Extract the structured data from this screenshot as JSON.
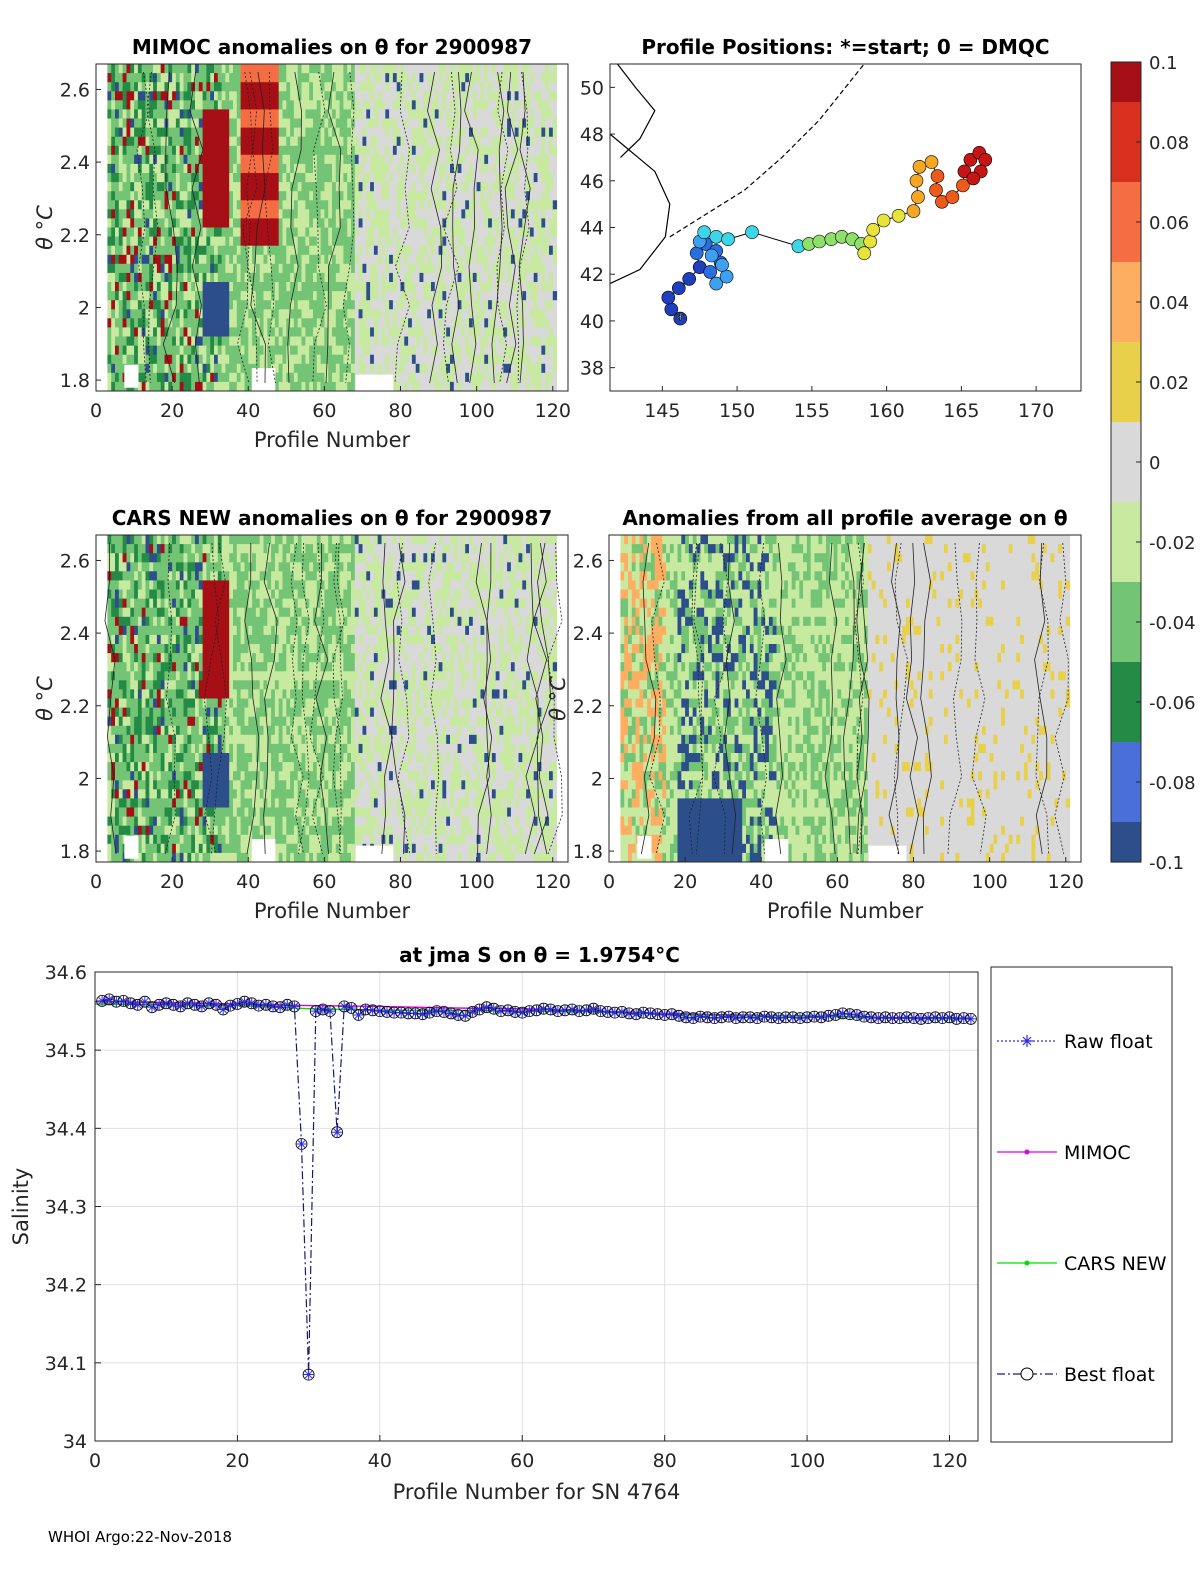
{
  "footer": "WHOI Argo:22-Nov-2018",
  "colorbar": {
    "ticks": [
      "0.1",
      "0.08",
      "0.06",
      "0.04",
      "0.02",
      "0",
      "-0.02",
      "-0.04",
      "-0.06",
      "-0.08",
      "-0.1"
    ],
    "stops": [
      "#a50f15",
      "#d7301f",
      "#f46d43",
      "#fdae61",
      "#e8d04a",
      "#d9d9d9",
      "#c7e9a0",
      "#74c476",
      "#238b45",
      "#4a6fd6",
      "#2c4f8c"
    ]
  },
  "section_plots": [
    {
      "id": "mimoc",
      "title": "MIMOC anomalies on θ  for 2900987",
      "xlabel": "Profile Number",
      "ylabel": "θ °C",
      "xticks": [
        "0",
        "20",
        "40",
        "60",
        "80",
        "100",
        "120"
      ],
      "yticks": [
        "2.6",
        "2.4",
        "2.2",
        "2",
        "1.8"
      ]
    },
    {
      "id": "cars",
      "title": "CARS NEW anomalies on θ for 2900987",
      "xlabel": "Profile Number",
      "ylabel": "θ °C",
      "xticks": [
        "0",
        "20",
        "40",
        "60",
        "80",
        "100",
        "120"
      ],
      "yticks": [
        "2.6",
        "2.4",
        "2.2",
        "2",
        "1.8"
      ]
    },
    {
      "id": "avg",
      "title": "Anomalies from all profile average on θ",
      "xlabel": "Profile Number",
      "ylabel": "θ °C",
      "xticks": [
        "0",
        "20",
        "40",
        "60",
        "80",
        "100",
        "120"
      ],
      "yticks": [
        "2.6",
        "2.4",
        "2.2",
        "2",
        "1.8"
      ]
    }
  ],
  "map": {
    "title": "Profile Positions: *=start; 0 = DMQC",
    "xticks": [
      "145",
      "150",
      "155",
      "160",
      "165",
      "170"
    ],
    "yticks": [
      "50",
      "48",
      "46",
      "44",
      "42",
      "40",
      "38"
    ]
  },
  "chart_data": [
    {
      "type": "scatter",
      "title": "Profile Positions: *=start; 0 = DMQC",
      "xlim": [
        141.5,
        173
      ],
      "ylim": [
        37,
        51
      ],
      "track": [
        [
          146.2,
          40.1
        ],
        [
          145.6,
          40.5
        ],
        [
          145.4,
          41.0
        ],
        [
          146.1,
          41.4
        ],
        [
          146.8,
          41.8
        ],
        [
          147.5,
          42.3
        ],
        [
          147.3,
          42.9
        ],
        [
          147.9,
          43.3
        ],
        [
          148.6,
          43.0
        ],
        [
          148.9,
          42.5
        ],
        [
          148.2,
          42.1
        ],
        [
          148.6,
          41.6
        ],
        [
          149.3,
          41.9
        ],
        [
          149.0,
          42.4
        ],
        [
          148.3,
          42.8
        ],
        [
          147.5,
          43.4
        ],
        [
          147.8,
          43.8
        ],
        [
          148.6,
          43.6
        ],
        [
          149.4,
          43.5
        ],
        [
          151.0,
          43.8
        ],
        [
          154.1,
          43.2
        ],
        [
          154.8,
          43.3
        ],
        [
          155.5,
          43.4
        ],
        [
          156.3,
          43.5
        ],
        [
          157.0,
          43.6
        ],
        [
          157.7,
          43.5
        ],
        [
          158.3,
          43.3
        ],
        [
          158.5,
          42.9
        ],
        [
          158.9,
          43.4
        ],
        [
          159.1,
          43.9
        ],
        [
          159.8,
          44.3
        ],
        [
          160.8,
          44.5
        ],
        [
          161.8,
          44.7
        ],
        [
          162.1,
          45.3
        ],
        [
          162.0,
          46.0
        ],
        [
          162.2,
          46.6
        ],
        [
          163.0,
          46.8
        ],
        [
          163.4,
          46.2
        ],
        [
          163.3,
          45.6
        ],
        [
          163.7,
          45.1
        ],
        [
          164.4,
          45.3
        ],
        [
          165.1,
          45.8
        ],
        [
          165.2,
          46.4
        ],
        [
          165.6,
          46.9
        ],
        [
          166.2,
          47.2
        ],
        [
          166.6,
          46.9
        ],
        [
          166.3,
          46.4
        ],
        [
          165.8,
          46.1
        ]
      ]
    },
    {
      "type": "line",
      "title": "at jma S on θ = 1.9754°C",
      "xlabel": "Profile Number for SN 4764",
      "ylabel": "Salinity",
      "xlim": [
        0,
        124
      ],
      "ylim": [
        34.0,
        34.6
      ],
      "xticks": [
        "0",
        "20",
        "40",
        "60",
        "80",
        "100",
        "120"
      ],
      "yticks": [
        "34.6",
        "34.5",
        "34.4",
        "34.3",
        "34.2",
        "34.1",
        "34"
      ],
      "legend": [
        "Raw float",
        "MIMOC",
        "CARS NEW",
        "Best float"
      ],
      "legend_position": "right",
      "raw_float": [
        34.563,
        34.565,
        34.562,
        34.563,
        34.56,
        34.558,
        34.562,
        34.555,
        34.558,
        34.56,
        34.558,
        34.556,
        34.56,
        34.558,
        34.556,
        34.56,
        34.558,
        34.552,
        34.557,
        34.559,
        34.562,
        34.56,
        34.557,
        34.558,
        34.556,
        34.555,
        34.558,
        34.556,
        34.38,
        34.085,
        34.55,
        34.552,
        34.55,
        34.395,
        34.556,
        34.554,
        34.545,
        34.552,
        34.551,
        34.55,
        34.549,
        34.548,
        34.548,
        34.547,
        34.547,
        34.546,
        34.548,
        34.55,
        34.549,
        34.547,
        34.545,
        34.544,
        34.549,
        34.552,
        34.555,
        34.553,
        34.55,
        34.551,
        34.549,
        34.548,
        34.55,
        34.551,
        34.553,
        34.552,
        34.55,
        34.551,
        34.552,
        34.55,
        34.551,
        34.553,
        34.55,
        34.549,
        34.548,
        34.549,
        34.547,
        34.546,
        34.548,
        34.547,
        34.546,
        34.545,
        34.546,
        34.544,
        34.542,
        34.541,
        34.543,
        34.542,
        34.541,
        34.542,
        34.543,
        34.541,
        34.542,
        34.542,
        34.541,
        34.543,
        34.542,
        34.541,
        34.542,
        34.542,
        34.541,
        34.542,
        34.543,
        34.542,
        34.544,
        34.545,
        34.547,
        34.546,
        34.545,
        34.543,
        34.542,
        34.541,
        34.542,
        34.541,
        34.541,
        34.542,
        34.541,
        34.54,
        34.541,
        34.542,
        34.541,
        34.542,
        34.54,
        34.541,
        34.54
      ],
      "mimoc": [
        [
          0,
          34.562
        ],
        [
          10,
          34.561
        ],
        [
          20,
          34.559
        ],
        [
          30,
          34.557
        ],
        [
          40,
          34.556
        ],
        [
          50,
          34.554
        ],
        [
          60,
          34.553
        ],
        [
          70,
          34.55
        ],
        [
          80,
          34.547
        ],
        [
          90,
          34.545
        ],
        [
          100,
          34.544
        ],
        [
          110,
          34.542
        ],
        [
          123,
          34.541
        ]
      ],
      "cars_new": [
        [
          0,
          34.559
        ],
        [
          10,
          34.558
        ],
        [
          20,
          34.557
        ],
        [
          30,
          34.553
        ],
        [
          40,
          34.551
        ],
        [
          50,
          34.551
        ],
        [
          60,
          34.55
        ],
        [
          70,
          34.549
        ],
        [
          80,
          34.546
        ],
        [
          90,
          34.544
        ],
        [
          100,
          34.544
        ],
        [
          110,
          34.541
        ],
        [
          123,
          34.54
        ]
      ]
    }
  ]
}
